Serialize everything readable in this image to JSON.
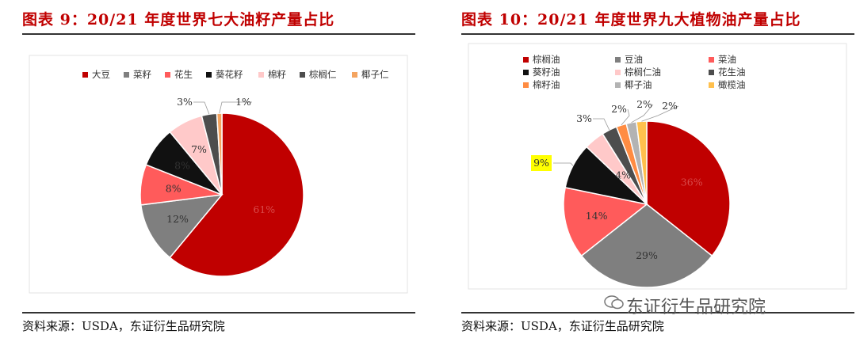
{
  "chart_data": [
    {
      "type": "pie",
      "title": "图表 9：20/21 年度世界七大油籽产量占比",
      "source": "资料来源：USDA，东证衍生品研究院",
      "categories": [
        "大豆",
        "菜籽",
        "花生",
        "葵花籽",
        "棉籽",
        "棕榈仁",
        "椰子仁"
      ],
      "values": [
        61,
        12,
        8,
        8,
        7,
        3,
        1
      ],
      "labels": [
        "61%",
        "12%",
        "8%",
        "8%",
        "7%",
        "3%",
        "1%"
      ],
      "colors": [
        "#c00000",
        "#7f7f7f",
        "#ff5b5b",
        "#111111",
        "#ffc9c9",
        "#4d4d4d",
        "#f4a460"
      ],
      "highlighted_label_index": 3,
      "legend_position": "top"
    },
    {
      "type": "pie",
      "title": "图表 10：20/21 年度世界九大植物油产量占比",
      "source": "资料来源：USDA，东证衍生品研究院",
      "categories": [
        "棕榈油",
        "豆油",
        "菜油",
        "葵籽油",
        "棕榈仁油",
        "花生油",
        "棉籽油",
        "椰子油",
        "橄榄油"
      ],
      "values": [
        36,
        29,
        14,
        9,
        4,
        3,
        2,
        2,
        2
      ],
      "labels": [
        "36%",
        "29%",
        "14%",
        "9%",
        "4%",
        "3%",
        "2%",
        "2%",
        "2%"
      ],
      "colors": [
        "#c00000",
        "#7f7f7f",
        "#ff5b5b",
        "#111111",
        "#ffc9c9",
        "#4d4d4d",
        "#ff8c42",
        "#b3b3b3",
        "#ffc04d"
      ],
      "highlighted_label_index": 3,
      "legend_position": "top"
    }
  ],
  "watermark": "东证衍生品研究院"
}
